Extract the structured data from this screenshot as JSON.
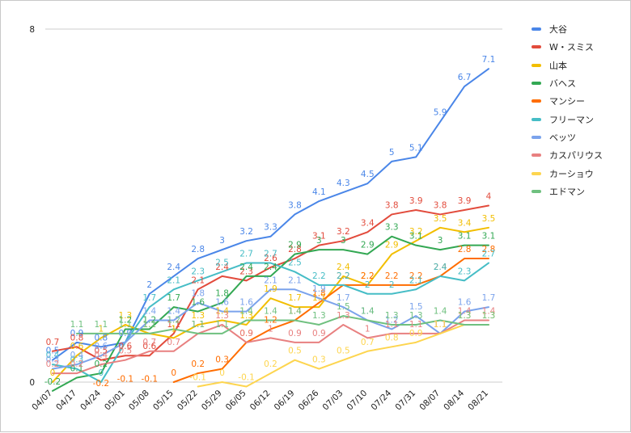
{
  "chart_data": {
    "type": "line",
    "title": "",
    "xlabel": "",
    "ylabel": "",
    "ylim": [
      0,
      8
    ],
    "y_tick_labels": [
      "0",
      "8"
    ],
    "grid": true,
    "legend_position": "right",
    "x": [
      "04/07",
      "04/17",
      "04/24",
      "05/01",
      "05/08",
      "05/15",
      "05/22",
      "05/29",
      "06/05",
      "06/12",
      "06/19",
      "06/26",
      "07/03",
      "07/10",
      "07/24",
      "07/31",
      "08/07",
      "08/14",
      "08/21"
    ],
    "series": [
      {
        "name": "大谷",
        "color": "#4a86e8",
        "values": [
          0.5,
          0.9,
          0.8,
          0.9,
          2.0,
          2.4,
          2.8,
          3.0,
          3.2,
          3.3,
          3.8,
          4.1,
          4.3,
          4.5,
          5.0,
          5.1,
          5.9,
          6.7,
          7.1
        ]
      },
      {
        "name": "W・スミス",
        "color": "#e24b3c",
        "values": [
          0.7,
          0.8,
          0.5,
          0.6,
          0.6,
          1.1,
          2.1,
          2.4,
          2.3,
          2.6,
          2.8,
          3.1,
          3.2,
          3.4,
          3.8,
          3.9,
          3.8,
          3.9,
          4.0
        ]
      },
      {
        "name": "山本",
        "color": "#f2be00",
        "values": [
          0.0,
          0.6,
          1.0,
          1.3,
          1.1,
          1.0,
          1.3,
          1.4,
          1.3,
          1.9,
          1.7,
          1.7,
          2.4,
          2.2,
          2.9,
          3.2,
          3.5,
          3.4,
          3.5
        ]
      },
      {
        "name": "バヘス",
        "color": "#33a853",
        "values": [
          -0.2,
          0.1,
          0.2,
          1.2,
          1.2,
          1.7,
          1.6,
          1.8,
          2.4,
          2.4,
          2.9,
          3.0,
          3.0,
          2.9,
          3.3,
          3.1,
          3.0,
          3.1,
          3.1
        ]
      },
      {
        "name": "マンシー",
        "color": "#ff6d00",
        "values": [
          null,
          null,
          null,
          null,
          null,
          0.0,
          0.2,
          0.3,
          0.9,
          1.2,
          1.4,
          1.8,
          2.2,
          2.2,
          2.2,
          2.2,
          2.4,
          2.8,
          2.8
        ]
      },
      {
        "name": "フリーマン",
        "color": "#46bdc6",
        "values": [
          0.4,
          0.3,
          0.0,
          0.9,
          1.7,
          2.1,
          2.3,
          2.5,
          2.7,
          2.7,
          2.5,
          2.2,
          2.2,
          2.0,
          2.0,
          2.1,
          2.4,
          2.3,
          2.7
        ]
      },
      {
        "name": "ベッツ",
        "color": "#7ba3ec",
        "values": [
          0.3,
          0.4,
          0.6,
          0.9,
          1.4,
          1.4,
          1.8,
          1.6,
          1.6,
          2.1,
          2.1,
          1.9,
          1.7,
          1.4,
          1.2,
          1.5,
          1.1,
          1.6,
          1.7
        ]
      },
      {
        "name": "カスパリウス",
        "color": "#e88080",
        "values": [
          0.2,
          0.2,
          0.4,
          0.5,
          0.7,
          0.7,
          1.1,
          1.3,
          0.9,
          1.0,
          0.9,
          0.9,
          1.3,
          1.0,
          1.1,
          1.1,
          1.1,
          1.4,
          1.4
        ]
      },
      {
        "name": "カーショウ",
        "color": "#fdd54f",
        "values": [
          null,
          null,
          null,
          null,
          null,
          null,
          -0.1,
          0.0,
          -0.1,
          0.2,
          0.5,
          0.3,
          0.5,
          0.7,
          0.8,
          0.9,
          1.1,
          1.3,
          1.3
        ]
      },
      {
        "name": "エドマン",
        "color": "#6fc07f",
        "values": [
          null,
          1.1,
          1.1,
          1.1,
          1.1,
          1.2,
          1.1,
          1.1,
          1.4,
          1.4,
          1.4,
          1.3,
          1.5,
          1.4,
          1.3,
          1.3,
          1.4,
          1.3,
          1.3
        ]
      }
    ],
    "extra_labels": [
      {
        "series": 4,
        "label": "-0.1",
        "x_index": 3
      },
      {
        "series": 4,
        "label": "-0.1",
        "x_index": 4
      },
      {
        "series": 4,
        "label": "-0.2",
        "x_index": 2
      }
    ]
  }
}
